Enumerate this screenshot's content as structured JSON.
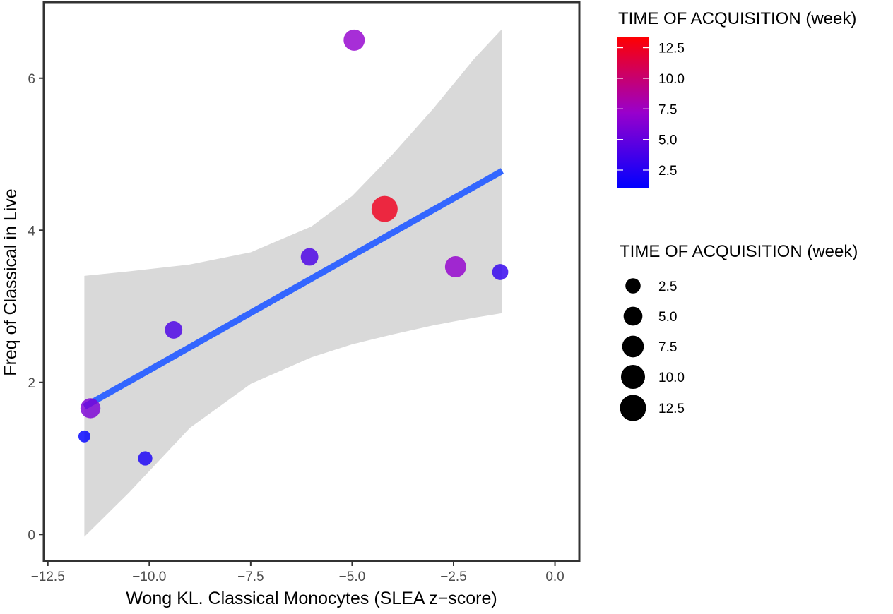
{
  "chart_data": {
    "type": "scatter",
    "xlabel": "Wong KL. Classical Monocytes (SLEA z−score)",
    "ylabel": "Freq of Classical in Live",
    "xlim": [
      -12.6,
      0.6
    ],
    "ylim": [
      -0.35,
      7.0
    ],
    "x_ticks": [
      -12.5,
      -10.0,
      -7.5,
      -5.0,
      -2.5,
      0.0
    ],
    "x_tick_labels": [
      "−12.5",
      "−10.0",
      "−7.5",
      "−5.0",
      "−2.5",
      "0.0"
    ],
    "y_ticks": [
      0,
      2,
      4,
      6
    ],
    "y_tick_labels": [
      "0",
      "2",
      "4",
      "6"
    ],
    "grid": false,
    "points": [
      {
        "x": -11.6,
        "y": 1.29,
        "time_week": 1
      },
      {
        "x": -10.1,
        "y": 1.0,
        "time_week": 2
      },
      {
        "x": -11.45,
        "y": 1.66,
        "time_week": 6
      },
      {
        "x": -9.4,
        "y": 2.69,
        "time_week": 4
      },
      {
        "x": -6.05,
        "y": 3.65,
        "time_week": 4
      },
      {
        "x": -4.95,
        "y": 6.5,
        "time_week": 7
      },
      {
        "x": -4.2,
        "y": 4.28,
        "time_week": 12.5
      },
      {
        "x": -2.45,
        "y": 3.52,
        "time_week": 7
      },
      {
        "x": -1.35,
        "y": 3.45,
        "time_week": 3
      }
    ],
    "fit_line": {
      "type": "lm",
      "color": "#3366FF",
      "x": [
        -11.6,
        -1.3
      ],
      "y": [
        1.68,
        4.78
      ],
      "band_x": [
        -11.6,
        -10.5,
        -9.0,
        -7.5,
        -6.0,
        -5.0,
        -4.0,
        -3.0,
        -2.0,
        -1.3
      ],
      "band_upper": [
        3.4,
        3.46,
        3.55,
        3.71,
        4.05,
        4.45,
        5.0,
        5.6,
        6.25,
        6.65
      ],
      "band_lower": [
        -0.03,
        0.55,
        1.4,
        1.98,
        2.33,
        2.5,
        2.63,
        2.75,
        2.85,
        2.91
      ],
      "band_color": "#D9D9D9"
    },
    "legend_color": {
      "title": "TIME OF ACQUISITION (week)",
      "low_color": "#0000FF",
      "high_color": "#FF0000",
      "range": [
        1,
        13.4
      ],
      "ticks": [
        2.5,
        5.0,
        7.5,
        10.0,
        12.5
      ],
      "tick_labels": [
        "2.5",
        "5.0",
        "7.5",
        "10.0",
        "12.5"
      ],
      "placement": "right"
    },
    "legend_size": {
      "title": "TIME OF ACQUISITION (week)",
      "values": [
        2.5,
        5.0,
        7.5,
        10.0,
        12.5
      ],
      "labels": [
        "2.5",
        "5.0",
        "7.5",
        "10.0",
        "12.5"
      ],
      "placement": "right"
    }
  }
}
